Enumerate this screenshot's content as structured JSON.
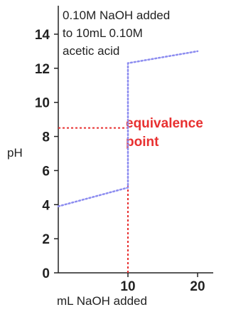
{
  "chart_data": {
    "type": "line",
    "title_lines": [
      "0.10M NaOH added",
      "to 10mL 0.10M",
      "acetic acid"
    ],
    "xlabel": "mL NaOH added",
    "ylabel": "pH",
    "xlim": [
      0,
      20
    ],
    "ylim": [
      0,
      14
    ],
    "xticks": [
      "10",
      "20"
    ],
    "yticks": [
      "0",
      "2",
      "4",
      "6",
      "8",
      "10",
      "12",
      "14"
    ],
    "grid": false,
    "series": [
      {
        "color": "#8c8cf0",
        "style": "dotted",
        "points": [
          [
            0,
            3.9
          ],
          [
            10,
            5.0
          ],
          [
            10,
            12.3
          ],
          [
            20,
            13.0
          ]
        ]
      }
    ],
    "annotation": {
      "lines": [
        "equivalence",
        "point"
      ],
      "color": "#e83030",
      "x": 10,
      "y": 8.5,
      "style": "dashed"
    }
  }
}
